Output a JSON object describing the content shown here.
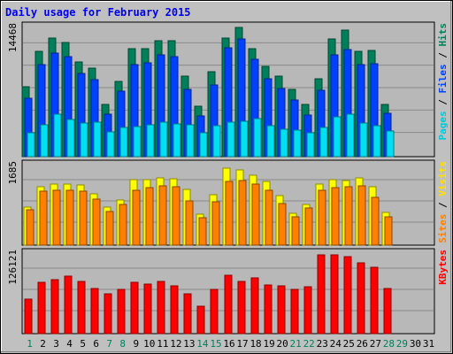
{
  "chart_data": {
    "type": "bar",
    "title": "Daily usage for February 2015",
    "days": [
      "1",
      "2",
      "3",
      "4",
      "5",
      "6",
      "7",
      "8",
      "9",
      "10",
      "11",
      "12",
      "13",
      "14",
      "15",
      "16",
      "17",
      "18",
      "19",
      "20",
      "21",
      "22",
      "23",
      "24",
      "25",
      "26",
      "27",
      "28",
      "29",
      "30",
      "31"
    ],
    "weekend_days": [
      "1",
      "7",
      "8",
      "14",
      "15",
      "21",
      "22",
      "28",
      "29"
    ],
    "panels": [
      {
        "id": "hits-files-pages",
        "ymax_label": "14468",
        "ymax": 14468,
        "right_label": [
          {
            "text": "Pages",
            "color": "#00c8d8"
          },
          {
            "text": " / ",
            "color": "#000000"
          },
          {
            "text": "Files",
            "color": "#0040ff"
          },
          {
            "text": " / ",
            "color": "#000000"
          },
          {
            "text": "Hits",
            "color": "#00805a"
          }
        ],
        "series": [
          {
            "name": "Hits",
            "color": "#00805a",
            "values": [
              7800,
              11800,
              13300,
              12800,
              10600,
              9900,
              5800,
              8400,
              12100,
              12100,
              13000,
              13000,
              9000,
              5600,
              9500,
              13300,
              14468,
              12100,
              10100,
              9000,
              7500,
              5800,
              8700,
              13200,
              14200,
              11800,
              11900,
              5800
            ]
          },
          {
            "name": "Files",
            "color": "#0040ff",
            "values": [
              6500,
              10300,
              11600,
              11200,
              9300,
              8600,
              4800,
              7300,
              10300,
              10500,
              11400,
              11200,
              7500,
              4600,
              8000,
              12200,
              13200,
              10900,
              8700,
              7600,
              6300,
              4700,
              7400,
              11400,
              12000,
              10300,
              10400,
              4900
            ]
          },
          {
            "name": "Pages",
            "color": "#00e0f0",
            "values": [
              2700,
              3600,
              4800,
              4200,
              3800,
              3900,
              2800,
              3300,
              3400,
              3600,
              3900,
              3700,
              3600,
              2700,
              3500,
              3900,
              4000,
              4300,
              3500,
              3100,
              3000,
              2700,
              3300,
              4500,
              4800,
              3800,
              3500,
              2900
            ]
          }
        ]
      },
      {
        "id": "visits-sites",
        "ymax_label": "1685",
        "ymax": 1685,
        "right_label": [
          {
            "text": "Sites",
            "color": "#ff8000"
          },
          {
            "text": " / ",
            "color": "#000000"
          },
          {
            "text": "Visits",
            "color": "#ffe000"
          }
        ],
        "series": [
          {
            "name": "Visits",
            "color": "#ffff00",
            "values": [
              810,
              1240,
              1300,
              1300,
              1280,
              1080,
              810,
              960,
              1380,
              1380,
              1420,
              1400,
              1180,
              650,
              1060,
              1620,
              1600,
              1480,
              1350,
              1040,
              670,
              860,
              1290,
              1380,
              1360,
              1420,
              1230,
              700
            ]
          },
          {
            "name": "Sites",
            "color": "#ff8000",
            "values": [
              750,
              1140,
              1160,
              1170,
              1140,
              970,
              720,
              870,
              1170,
              1220,
              1250,
              1230,
              930,
              580,
              920,
              1350,
              1360,
              1300,
              1160,
              880,
              590,
              790,
              1160,
              1210,
              1230,
              1250,
              1020,
              590
            ]
          }
        ]
      },
      {
        "id": "kbytes",
        "ymax_label": "126121",
        "ymax": 126121,
        "right_label": [
          {
            "text": "KBytes",
            "color": "#ff0000"
          }
        ],
        "series": [
          {
            "name": "KBytes",
            "color": "#ff0000",
            "values": [
              54000,
              81000,
              86000,
              91000,
              83000,
              72000,
              63000,
              70000,
              81000,
              78000,
              82000,
              75000,
              63000,
              44000,
              70000,
              92000,
              83000,
              88000,
              77000,
              76000,
              70000,
              74000,
              125000,
              125000,
              122000,
              112000,
              105000,
              71000
            ]
          }
        ]
      }
    ]
  }
}
